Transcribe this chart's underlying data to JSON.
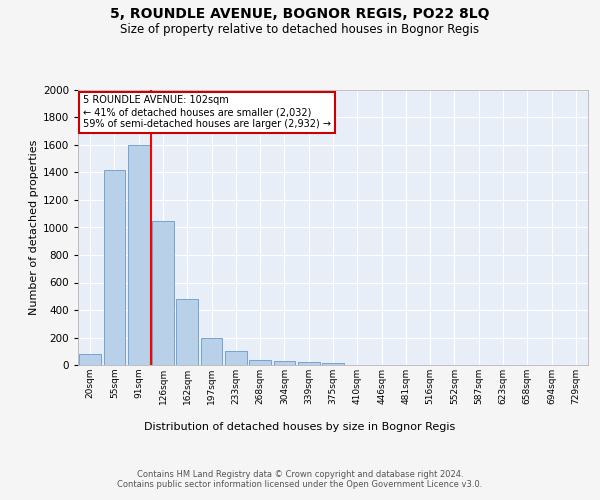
{
  "title": "5, ROUNDLE AVENUE, BOGNOR REGIS, PO22 8LQ",
  "subtitle": "Size of property relative to detached houses in Bognor Regis",
  "xlabel": "Distribution of detached houses by size in Bognor Regis",
  "ylabel": "Number of detached properties",
  "categories": [
    "20sqm",
    "55sqm",
    "91sqm",
    "126sqm",
    "162sqm",
    "197sqm",
    "233sqm",
    "268sqm",
    "304sqm",
    "339sqm",
    "375sqm",
    "410sqm",
    "446sqm",
    "481sqm",
    "516sqm",
    "552sqm",
    "587sqm",
    "623sqm",
    "658sqm",
    "694sqm",
    "729sqm"
  ],
  "values": [
    80,
    1420,
    1600,
    1050,
    480,
    200,
    105,
    40,
    30,
    20,
    15,
    0,
    0,
    0,
    0,
    0,
    0,
    0,
    0,
    0,
    0
  ],
  "bar_color": "#b8d0e8",
  "bar_edge_color": "#6699cc",
  "background_color": "#e8eef8",
  "grid_color": "#ffffff",
  "red_line_x": 2.5,
  "annotation_text": "5 ROUNDLE AVENUE: 102sqm\n← 41% of detached houses are smaller (2,032)\n59% of semi-detached houses are larger (2,932) →",
  "annotation_box_color": "#ffffff",
  "annotation_box_edge": "#cc0000",
  "ylim": [
    0,
    2000
  ],
  "yticks": [
    0,
    200,
    400,
    600,
    800,
    1000,
    1200,
    1400,
    1600,
    1800,
    2000
  ],
  "footer": "Contains HM Land Registry data © Crown copyright and database right 2024.\nContains public sector information licensed under the Open Government Licence v3.0.",
  "title_fontsize": 10,
  "subtitle_fontsize": 8.5,
  "ylabel_fontsize": 8,
  "xlabel_fontsize": 8,
  "footer_fontsize": 6,
  "fig_bg": "#f5f5f5"
}
